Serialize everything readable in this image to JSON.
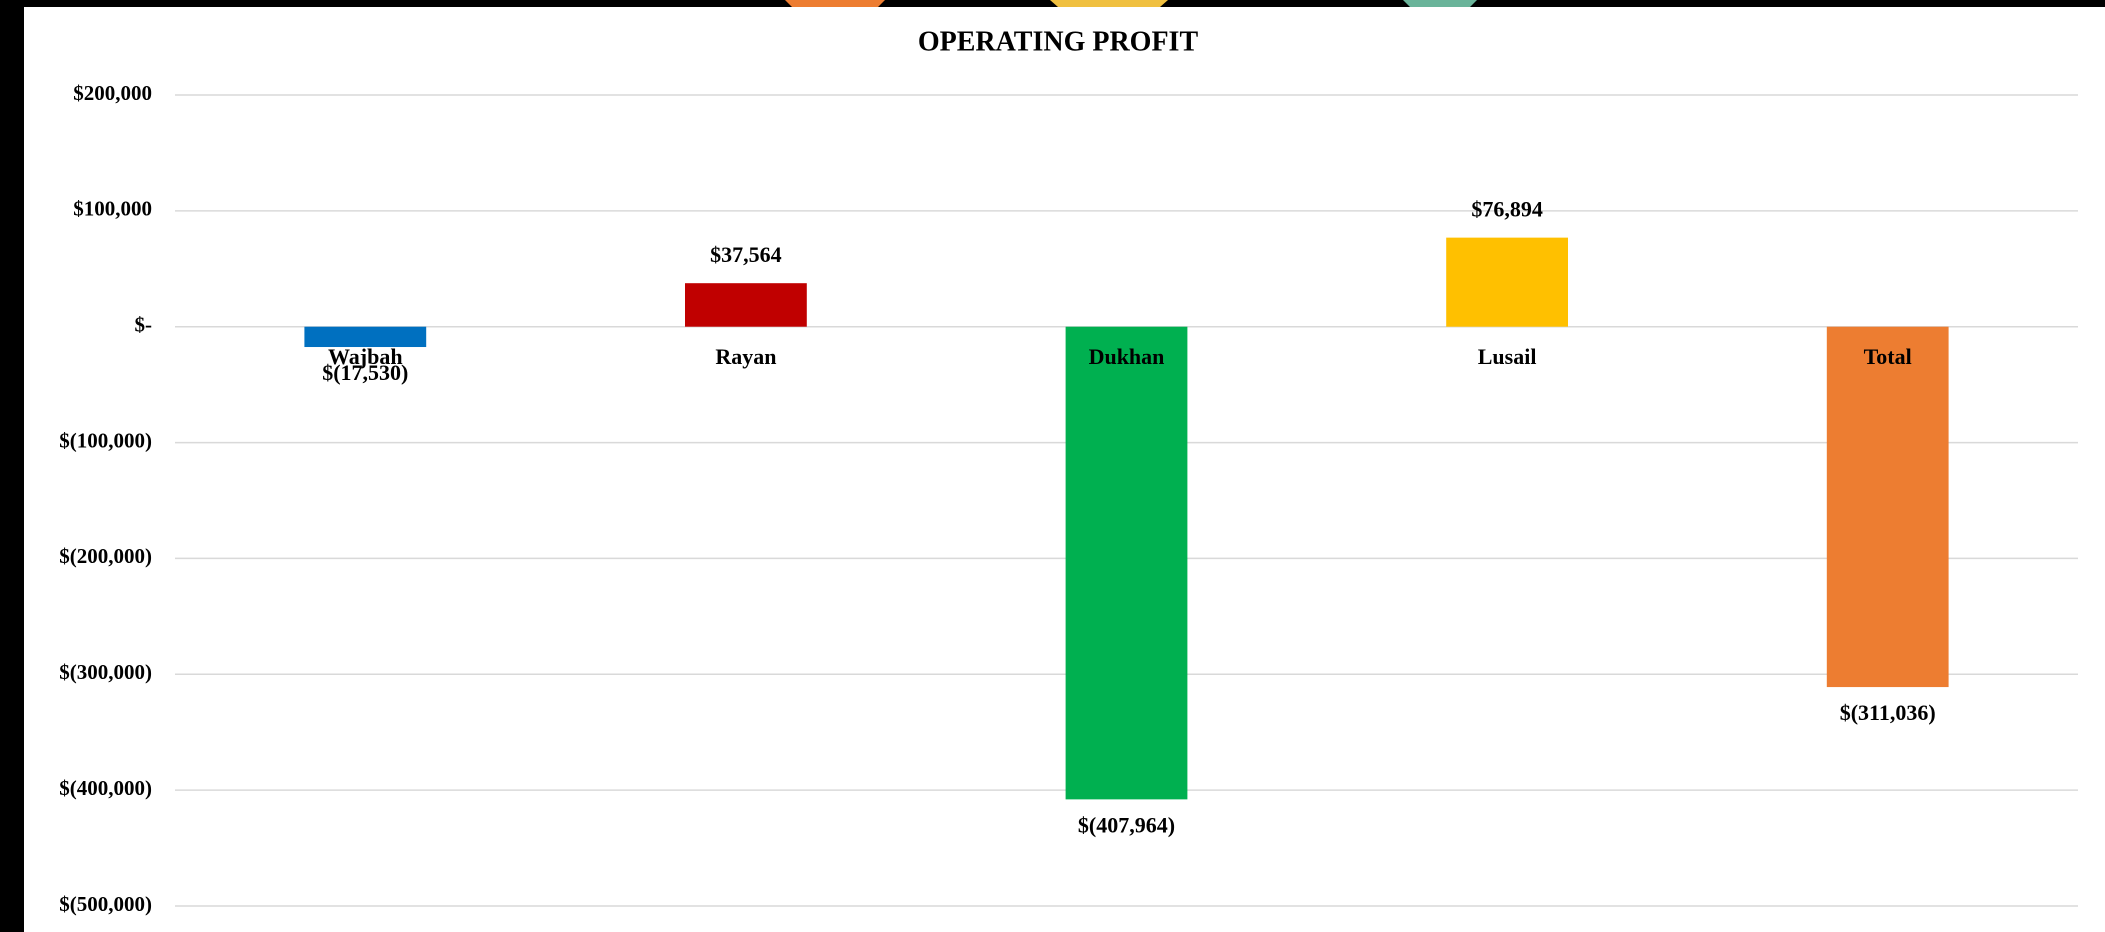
{
  "chart_data": {
    "type": "bar",
    "title": "OPERATING PROFIT",
    "categories": [
      "Wajbah",
      "Rayan",
      "Dukhan",
      "Lusail",
      "Total"
    ],
    "values": [
      -17530,
      37564,
      -407964,
      76894,
      -311036
    ],
    "value_labels": [
      "$(17,530)",
      "$37,564",
      "$(407,964)",
      "$76,894",
      "$(311,036)"
    ],
    "colors": [
      "#0070c0",
      "#c00000",
      "#00b050",
      "#ffc000",
      "#ed7d31"
    ],
    "ylim": [
      -500000,
      200000
    ],
    "yticks": [
      {
        "value": 200000,
        "label": "$200,000"
      },
      {
        "value": 100000,
        "label": "$100,000"
      },
      {
        "value": 0,
        "label": "$-"
      },
      {
        "value": -100000,
        "label": "$(100,000)"
      },
      {
        "value": -200000,
        "label": "$(200,000)"
      },
      {
        "value": -300000,
        "label": "$(300,000)"
      },
      {
        "value": -400000,
        "label": "$(400,000)"
      },
      {
        "value": -500000,
        "label": "$(500,000)"
      }
    ],
    "grid": true
  }
}
